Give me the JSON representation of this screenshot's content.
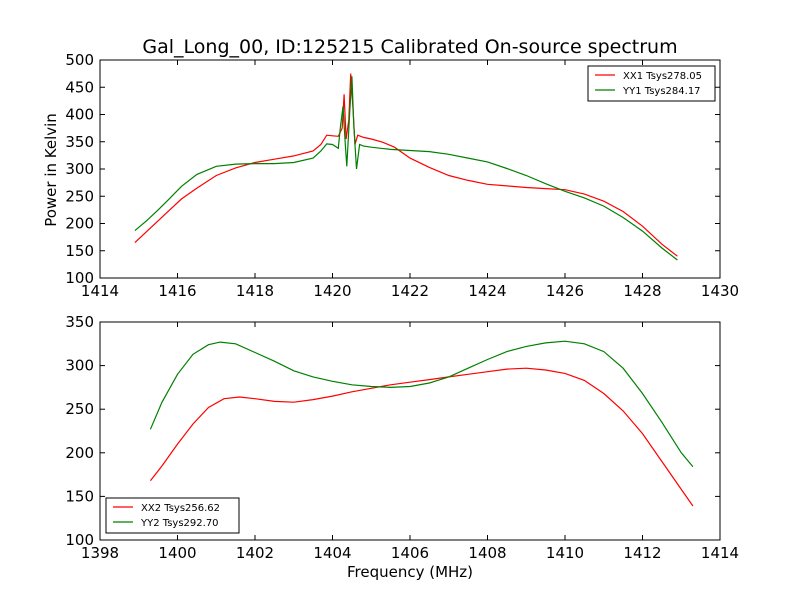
{
  "figure": {
    "title": "Gal_Long_00, ID:125215 Calibrated On-source spectrum",
    "ylabel": "Power in Kelvin",
    "xlabel": "Frequency (MHz)"
  },
  "chart_data": [
    {
      "type": "line",
      "xlim": [
        1414,
        1430
      ],
      "ylim": [
        100,
        500
      ],
      "xticks": [
        1414,
        1416,
        1418,
        1420,
        1422,
        1424,
        1426,
        1428,
        1430
      ],
      "yticks": [
        100,
        150,
        200,
        250,
        300,
        350,
        400,
        450,
        500
      ],
      "legend_position": "top-right",
      "series": [
        {
          "name": "XX1 Tsys278.05",
          "color": "#ff0000",
          "points": [
            [
              1414.9,
              165
            ],
            [
              1415.2,
              185
            ],
            [
              1415.5,
              205
            ],
            [
              1415.8,
              225
            ],
            [
              1416.1,
              245
            ],
            [
              1416.5,
              265
            ],
            [
              1417.0,
              288
            ],
            [
              1417.5,
              302
            ],
            [
              1418.0,
              312
            ],
            [
              1418.5,
              318
            ],
            [
              1419.0,
              324
            ],
            [
              1419.5,
              333
            ],
            [
              1419.7,
              345
            ],
            [
              1419.85,
              362
            ],
            [
              1420.0,
              361
            ],
            [
              1420.15,
              360
            ],
            [
              1420.25,
              375
            ],
            [
              1420.3,
              437
            ],
            [
              1420.35,
              355
            ],
            [
              1420.42,
              390
            ],
            [
              1420.47,
              475
            ],
            [
              1420.53,
              410
            ],
            [
              1420.58,
              345
            ],
            [
              1420.65,
              362
            ],
            [
              1420.8,
              358
            ],
            [
              1421.0,
              355
            ],
            [
              1421.3,
              349
            ],
            [
              1421.6,
              340
            ],
            [
              1422.0,
              320
            ],
            [
              1422.5,
              303
            ],
            [
              1423.0,
              288
            ],
            [
              1423.5,
              279
            ],
            [
              1424.0,
              272
            ],
            [
              1424.5,
              269
            ],
            [
              1425.0,
              266
            ],
            [
              1425.5,
              264
            ],
            [
              1426.0,
              262
            ],
            [
              1426.5,
              254
            ],
            [
              1427.0,
              241
            ],
            [
              1427.5,
              222
            ],
            [
              1428.0,
              195
            ],
            [
              1428.5,
              162
            ],
            [
              1428.9,
              140
            ]
          ]
        },
        {
          "name": "YY1 Tsys284.17",
          "color": "#008000",
          "points": [
            [
              1414.9,
              187
            ],
            [
              1415.2,
              205
            ],
            [
              1415.5,
              225
            ],
            [
              1415.8,
              246
            ],
            [
              1416.1,
              268
            ],
            [
              1416.5,
              290
            ],
            [
              1417.0,
              305
            ],
            [
              1417.5,
              309
            ],
            [
              1418.0,
              310
            ],
            [
              1418.5,
              310
            ],
            [
              1419.0,
              312
            ],
            [
              1419.5,
              320
            ],
            [
              1419.7,
              333
            ],
            [
              1419.85,
              346
            ],
            [
              1420.0,
              345
            ],
            [
              1420.15,
              338
            ],
            [
              1420.2,
              375
            ],
            [
              1420.27,
              415
            ],
            [
              1420.33,
              345
            ],
            [
              1420.37,
              305
            ],
            [
              1420.45,
              410
            ],
            [
              1420.5,
              470
            ],
            [
              1420.55,
              380
            ],
            [
              1420.62,
              300
            ],
            [
              1420.7,
              345
            ],
            [
              1420.8,
              342
            ],
            [
              1421.0,
              340
            ],
            [
              1421.5,
              336
            ],
            [
              1422.0,
              334
            ],
            [
              1422.5,
              332
            ],
            [
              1423.0,
              327
            ],
            [
              1423.5,
              320
            ],
            [
              1424.0,
              313
            ],
            [
              1424.5,
              301
            ],
            [
              1425.0,
              288
            ],
            [
              1425.5,
              273
            ],
            [
              1426.0,
              259
            ],
            [
              1426.5,
              247
            ],
            [
              1427.0,
              232
            ],
            [
              1427.5,
              211
            ],
            [
              1428.0,
              186
            ],
            [
              1428.5,
              155
            ],
            [
              1428.9,
              133
            ]
          ]
        }
      ]
    },
    {
      "type": "line",
      "xlim": [
        1398,
        1414
      ],
      "ylim": [
        100,
        350
      ],
      "xticks": [
        1398,
        1400,
        1402,
        1404,
        1406,
        1408,
        1410,
        1412,
        1414
      ],
      "yticks": [
        100,
        150,
        200,
        250,
        300,
        350
      ],
      "legend_position": "bottom-left",
      "series": [
        {
          "name": "XX2 Tsys256.62",
          "color": "#ff0000",
          "points": [
            [
              1399.3,
              168
            ],
            [
              1399.6,
              185
            ],
            [
              1400.0,
              210
            ],
            [
              1400.4,
              233
            ],
            [
              1400.8,
              252
            ],
            [
              1401.2,
              262
            ],
            [
              1401.6,
              264
            ],
            [
              1402.0,
              262
            ],
            [
              1402.5,
              259
            ],
            [
              1403.0,
              258
            ],
            [
              1403.5,
              261
            ],
            [
              1404.0,
              265
            ],
            [
              1404.5,
              270
            ],
            [
              1405.0,
              274
            ],
            [
              1405.5,
              278
            ],
            [
              1406.0,
              281
            ],
            [
              1406.5,
              284
            ],
            [
              1407.0,
              287
            ],
            [
              1407.5,
              290
            ],
            [
              1408.0,
              293
            ],
            [
              1408.5,
              296
            ],
            [
              1409.0,
              297
            ],
            [
              1409.5,
              295
            ],
            [
              1410.0,
              291
            ],
            [
              1410.5,
              283
            ],
            [
              1411.0,
              268
            ],
            [
              1411.5,
              248
            ],
            [
              1412.0,
              222
            ],
            [
              1412.5,
              190
            ],
            [
              1413.0,
              158
            ],
            [
              1413.3,
              139
            ]
          ]
        },
        {
          "name": "YY2 Tsys292.70",
          "color": "#008000",
          "points": [
            [
              1399.3,
              227
            ],
            [
              1399.6,
              258
            ],
            [
              1400.0,
              290
            ],
            [
              1400.4,
              313
            ],
            [
              1400.8,
              324
            ],
            [
              1401.1,
              327
            ],
            [
              1401.5,
              325
            ],
            [
              1402.0,
              315
            ],
            [
              1402.5,
              305
            ],
            [
              1403.0,
              294
            ],
            [
              1403.5,
              287
            ],
            [
              1404.0,
              282
            ],
            [
              1404.5,
              278
            ],
            [
              1405.0,
              276
            ],
            [
              1405.5,
              275
            ],
            [
              1406.0,
              276
            ],
            [
              1406.5,
              280
            ],
            [
              1407.0,
              287
            ],
            [
              1407.5,
              297
            ],
            [
              1408.0,
              307
            ],
            [
              1408.5,
              316
            ],
            [
              1409.0,
              322
            ],
            [
              1409.5,
              326
            ],
            [
              1410.0,
              328
            ],
            [
              1410.5,
              325
            ],
            [
              1411.0,
              316
            ],
            [
              1411.5,
              297
            ],
            [
              1412.0,
              268
            ],
            [
              1412.5,
              235
            ],
            [
              1413.0,
              200
            ],
            [
              1413.3,
              184
            ]
          ]
        }
      ]
    }
  ]
}
